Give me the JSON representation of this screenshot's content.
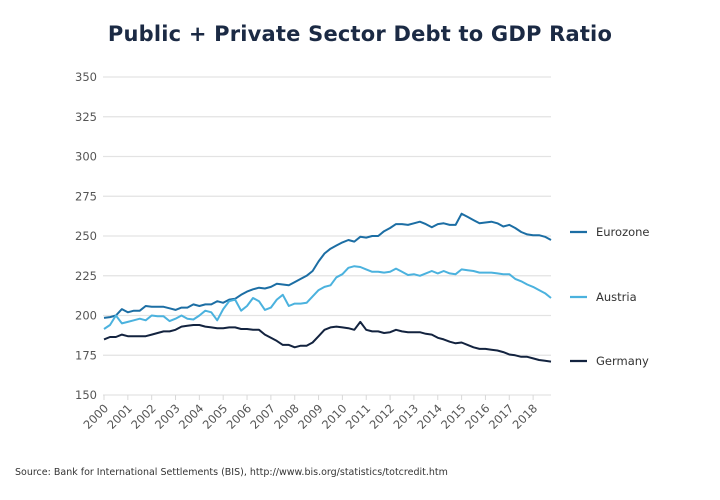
{
  "chart_data": {
    "type": "line",
    "title": "Public + Private Sector Debt to GDP Ratio",
    "source": "Source: Bank for International Settlements (BIS), http://www.bis.org/statistics/totcredit.htm",
    "xlabel": "",
    "ylabel": "",
    "ylim": [
      150,
      350
    ],
    "yticks": [
      150,
      175,
      200,
      225,
      250,
      275,
      300,
      325,
      350
    ],
    "xticks": [
      "2000",
      "2001",
      "2002",
      "2003",
      "2004",
      "2005",
      "2006",
      "2007",
      "2008",
      "2009",
      "2010",
      "2011",
      "2012",
      "2013",
      "2014",
      "2015",
      "2016",
      "2017",
      "2018"
    ],
    "x_start": 2000,
    "frequency": "quarterly",
    "grid": true,
    "legend": "right",
    "series": [
      {
        "name": "Eurozone",
        "color": "#1c6ea4",
        "values": [
          198.5,
          199,
          200,
          204,
          202,
          203,
          203,
          206,
          205.5,
          205.5,
          205.5,
          204.5,
          203.5,
          205,
          205,
          207,
          206,
          207,
          207,
          209,
          208,
          210,
          210.5,
          213,
          215,
          216.5,
          217.5,
          217,
          218,
          220,
          219.5,
          219,
          221,
          223,
          225,
          228,
          234,
          239,
          242,
          244,
          246,
          247.5,
          246.5,
          249.5,
          249,
          250,
          250,
          253,
          255,
          257.5,
          257.5,
          257,
          258,
          259,
          257.5,
          255.5,
          257.5,
          258,
          257,
          257,
          264,
          262,
          260,
          258,
          258.5,
          259,
          258,
          256,
          257,
          255,
          252.5,
          251,
          250.5,
          250.5,
          249.5,
          247.5
        ]
      },
      {
        "name": "Austria",
        "color": "#4bb2de",
        "values": [
          191.5,
          194,
          200,
          195,
          196,
          197,
          198,
          197,
          200,
          199.5,
          199.5,
          196.5,
          198,
          200,
          198,
          197.5,
          200,
          203,
          202,
          197,
          204,
          209,
          210,
          203,
          206,
          211,
          209,
          203.5,
          205,
          210,
          213,
          206,
          207.5,
          207.5,
          208,
          212,
          216,
          218,
          219,
          224,
          226,
          230,
          231,
          230.5,
          229,
          227.5,
          227.5,
          227,
          227.5,
          229.5,
          227.5,
          225.5,
          226,
          225,
          226.5,
          228,
          226.5,
          228,
          226.5,
          226,
          229,
          228.5,
          228,
          227,
          227,
          227,
          226.5,
          226,
          226,
          223,
          221.5,
          219.5,
          218,
          216,
          214,
          211
        ]
      },
      {
        "name": "Germany",
        "color": "#13233f",
        "values": [
          185,
          186.5,
          186.5,
          188,
          187,
          187,
          187,
          187,
          188,
          189,
          190,
          190,
          191,
          193,
          193.5,
          194,
          194,
          193,
          192.5,
          192,
          192,
          192.5,
          192.5,
          191.5,
          191.5,
          191,
          191,
          188,
          186,
          184,
          181.5,
          181.5,
          180,
          181,
          181,
          183,
          187,
          191,
          192.5,
          193,
          192.5,
          192,
          191,
          196,
          191,
          190,
          190,
          189,
          189.5,
          191,
          190,
          189.5,
          189.5,
          189.5,
          188.5,
          188,
          186,
          185,
          183.5,
          182.5,
          183,
          181.5,
          180,
          179,
          179,
          178.5,
          178,
          177,
          175.5,
          175,
          174,
          174,
          173,
          172,
          171.5,
          171
        ]
      }
    ]
  }
}
